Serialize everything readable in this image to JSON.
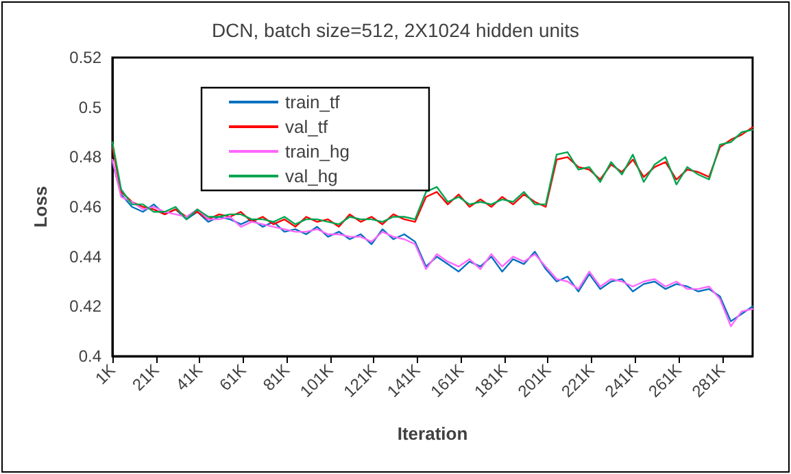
{
  "chart_data": {
    "type": "line",
    "title": "DCN, batch size=512, 2X1024 hidden units",
    "xlabel": "Iteration",
    "ylabel": "Loss",
    "x": [
      1,
      5,
      10,
      15,
      20,
      25,
      30,
      35,
      40,
      45,
      50,
      55,
      60,
      65,
      70,
      75,
      80,
      85,
      90,
      95,
      100,
      105,
      110,
      115,
      120,
      125,
      130,
      135,
      140,
      145,
      150,
      155,
      160,
      165,
      170,
      175,
      180,
      185,
      190,
      195,
      200,
      205,
      210,
      215,
      220,
      225,
      230,
      235,
      240,
      245,
      250,
      255,
      260,
      265,
      270,
      275,
      280,
      285,
      290,
      295
    ],
    "xlim": [
      1,
      295
    ],
    "xticks": [
      {
        "value": 1,
        "label": "1K"
      },
      {
        "value": 21,
        "label": "21K"
      },
      {
        "value": 41,
        "label": "41K"
      },
      {
        "value": 61,
        "label": "61K"
      },
      {
        "value": 81,
        "label": "81K"
      },
      {
        "value": 101,
        "label": "101K"
      },
      {
        "value": 121,
        "label": "121K"
      },
      {
        "value": 141,
        "label": "141K"
      },
      {
        "value": 161,
        "label": "161K"
      },
      {
        "value": 181,
        "label": "181K"
      },
      {
        "value": 201,
        "label": "201K"
      },
      {
        "value": 221,
        "label": "221K"
      },
      {
        "value": 241,
        "label": "241K"
      },
      {
        "value": 261,
        "label": "261K"
      },
      {
        "value": 281,
        "label": "281K"
      }
    ],
    "ylim": [
      0.4,
      0.52
    ],
    "yticks": [
      0.4,
      0.42,
      0.44,
      0.46,
      0.48,
      0.5,
      0.52
    ],
    "grid": false,
    "legend": "top left",
    "marker": "none",
    "line_style": "solid",
    "series": [
      {
        "name": "train_tf",
        "color": "#0070c0",
        "values": [
          0.478,
          0.465,
          0.46,
          0.458,
          0.461,
          0.457,
          0.459,
          0.455,
          0.458,
          0.454,
          0.456,
          0.455,
          0.453,
          0.455,
          0.452,
          0.454,
          0.45,
          0.451,
          0.449,
          0.452,
          0.448,
          0.45,
          0.447,
          0.449,
          0.445,
          0.451,
          0.447,
          0.449,
          0.446,
          0.436,
          0.44,
          0.437,
          0.434,
          0.438,
          0.436,
          0.44,
          0.434,
          0.439,
          0.437,
          0.442,
          0.435,
          0.43,
          0.432,
          0.426,
          0.433,
          0.427,
          0.43,
          0.431,
          0.426,
          0.429,
          0.43,
          0.427,
          0.429,
          0.428,
          0.426,
          0.427,
          0.424,
          0.414,
          0.417,
          0.42
        ]
      },
      {
        "name": "val_tf",
        "color": "#ff0000",
        "values": [
          0.484,
          0.466,
          0.462,
          0.46,
          0.459,
          0.457,
          0.459,
          0.456,
          0.458,
          0.455,
          0.457,
          0.456,
          0.458,
          0.454,
          0.456,
          0.453,
          0.455,
          0.452,
          0.456,
          0.454,
          0.455,
          0.452,
          0.457,
          0.454,
          0.456,
          0.453,
          0.457,
          0.455,
          0.454,
          0.464,
          0.466,
          0.461,
          0.465,
          0.46,
          0.463,
          0.46,
          0.464,
          0.461,
          0.465,
          0.462,
          0.46,
          0.479,
          0.48,
          0.476,
          0.475,
          0.471,
          0.477,
          0.474,
          0.479,
          0.472,
          0.476,
          0.478,
          0.471,
          0.475,
          0.474,
          0.472,
          0.484,
          0.487,
          0.489,
          0.492
        ]
      },
      {
        "name": "train_hg",
        "color": "#ff66ff",
        "values": [
          0.479,
          0.464,
          0.462,
          0.459,
          0.46,
          0.458,
          0.457,
          0.456,
          0.459,
          0.455,
          0.455,
          0.456,
          0.452,
          0.454,
          0.453,
          0.452,
          0.451,
          0.45,
          0.45,
          0.451,
          0.449,
          0.449,
          0.448,
          0.448,
          0.446,
          0.45,
          0.448,
          0.447,
          0.445,
          0.435,
          0.441,
          0.438,
          0.436,
          0.439,
          0.435,
          0.441,
          0.436,
          0.44,
          0.438,
          0.441,
          0.436,
          0.431,
          0.43,
          0.427,
          0.434,
          0.428,
          0.431,
          0.43,
          0.428,
          0.43,
          0.431,
          0.428,
          0.43,
          0.427,
          0.427,
          0.428,
          0.423,
          0.412,
          0.418,
          0.419
        ]
      },
      {
        "name": "val_hg",
        "color": "#00a550",
        "values": [
          0.486,
          0.467,
          0.461,
          0.461,
          0.458,
          0.458,
          0.46,
          0.455,
          0.459,
          0.456,
          0.456,
          0.457,
          0.457,
          0.455,
          0.455,
          0.454,
          0.456,
          0.453,
          0.455,
          0.455,
          0.454,
          0.453,
          0.456,
          0.455,
          0.455,
          0.454,
          0.456,
          0.456,
          0.455,
          0.466,
          0.468,
          0.462,
          0.464,
          0.461,
          0.462,
          0.461,
          0.463,
          0.462,
          0.466,
          0.461,
          0.461,
          0.481,
          0.482,
          0.475,
          0.476,
          0.47,
          0.478,
          0.473,
          0.481,
          0.47,
          0.477,
          0.48,
          0.469,
          0.476,
          0.473,
          0.471,
          0.485,
          0.486,
          0.49,
          0.491
        ]
      }
    ]
  }
}
